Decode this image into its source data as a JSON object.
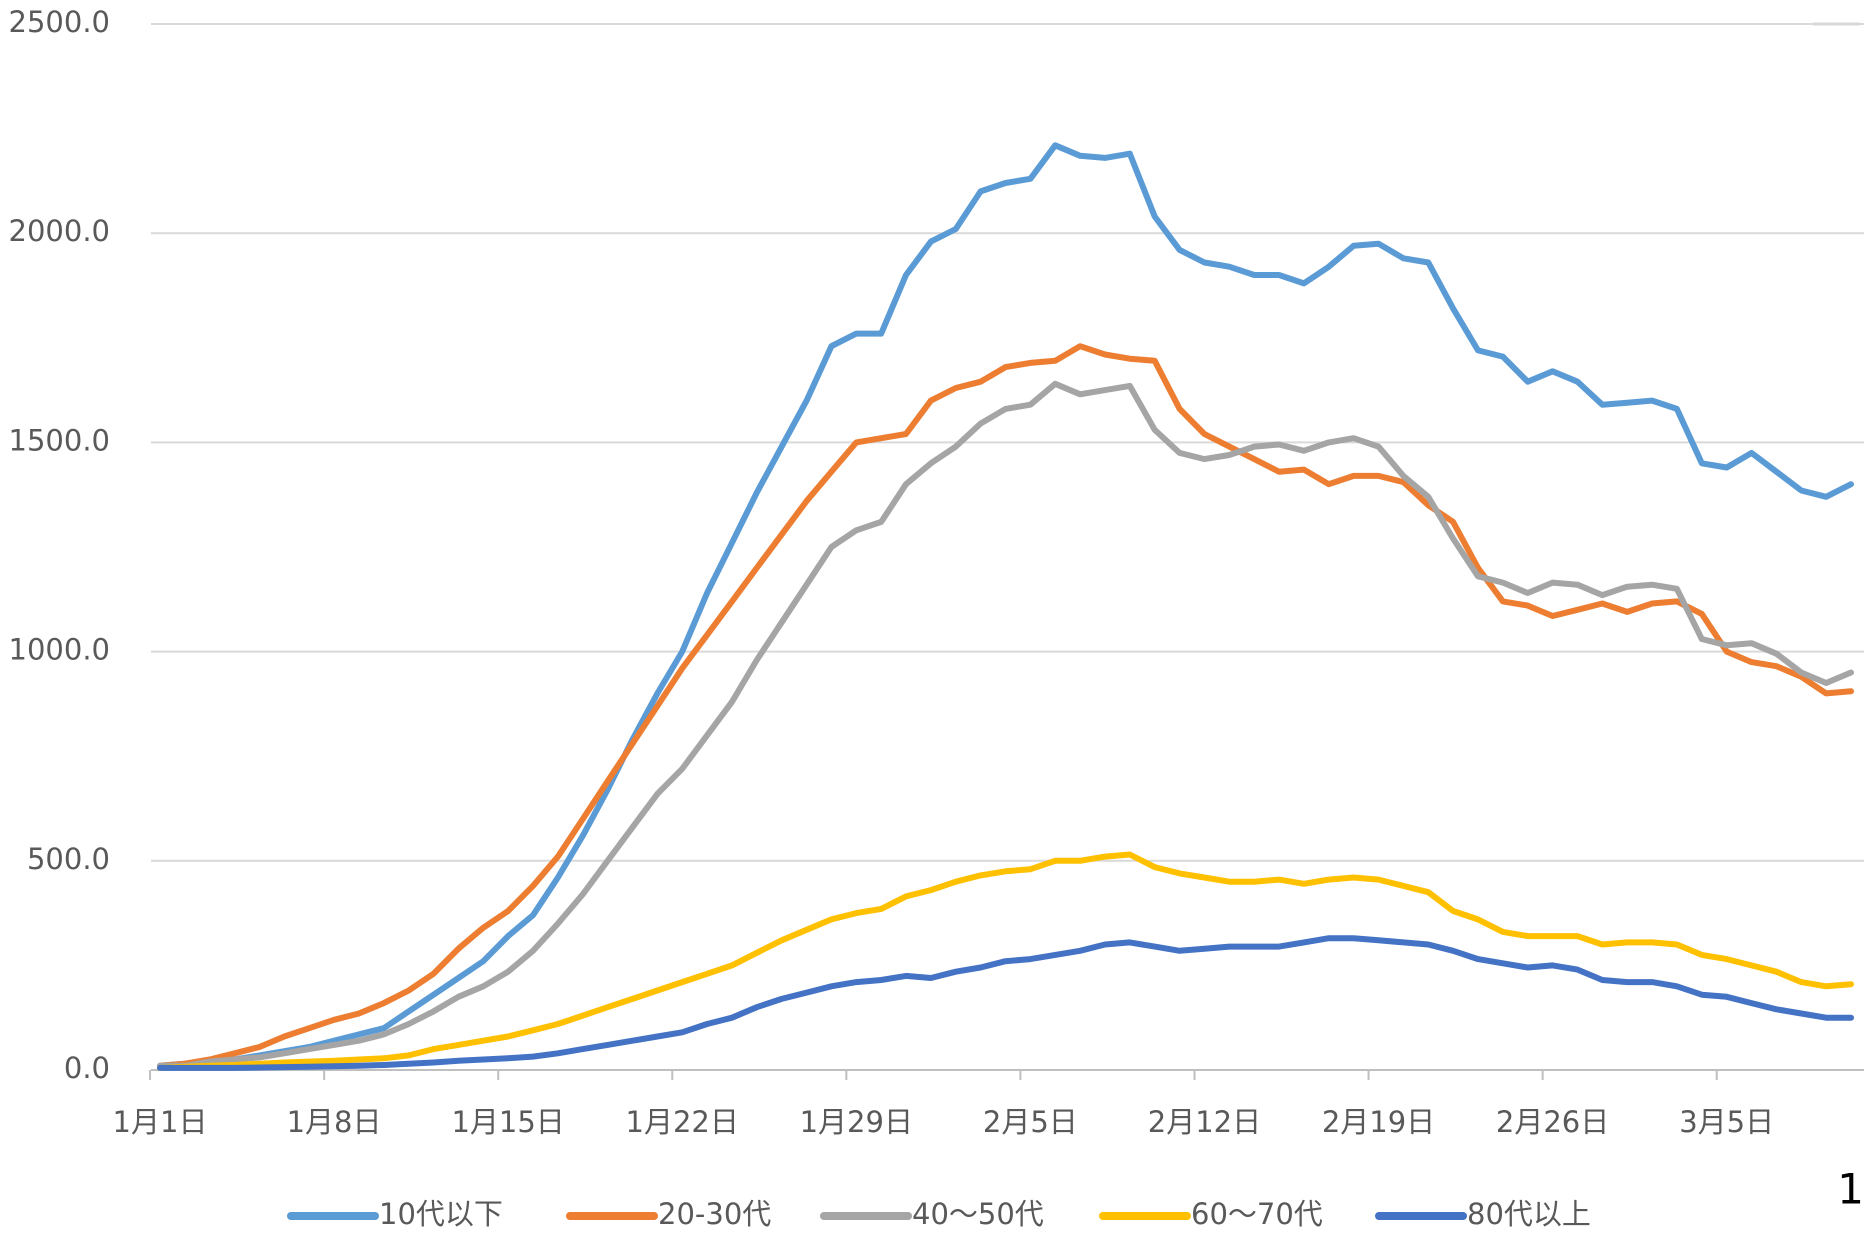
{
  "chart_data": {
    "type": "line",
    "categories": [
      "1月1日",
      null,
      null,
      null,
      null,
      null,
      null,
      "1月8日",
      null,
      null,
      null,
      null,
      null,
      null,
      "1月15日",
      null,
      null,
      null,
      null,
      null,
      null,
      "1月22日",
      null,
      null,
      null,
      null,
      null,
      null,
      "1月29日",
      null,
      null,
      null,
      null,
      null,
      null,
      "2月5日",
      null,
      null,
      null,
      null,
      null,
      null,
      "2月12日",
      null,
      null,
      null,
      null,
      null,
      null,
      "2月19日",
      null,
      null,
      null,
      null,
      null,
      null,
      "2月26日",
      null,
      null,
      null,
      null,
      null,
      null,
      "3月5日",
      null,
      null,
      null,
      null,
      null
    ],
    "series": [
      {
        "name": "10代以下",
        "color": "#5b9bd5",
        "values": [
          10,
          15,
          20,
          25,
          35,
          45,
          55,
          70,
          85,
          100,
          140,
          180,
          220,
          260,
          320,
          370,
          460,
          560,
          670,
          790,
          900,
          1000,
          1140,
          1260,
          1380,
          1490,
          1600,
          1730,
          1760,
          1760,
          1900,
          1980,
          2010,
          2100,
          2120,
          2130,
          2210,
          2185,
          2180,
          2190,
          2040,
          1960,
          1930,
          1920,
          1900,
          1900,
          1880,
          1920,
          1970,
          1975,
          1940,
          1930,
          1820,
          1720,
          1705,
          1645,
          1670,
          1645,
          1590,
          1595,
          1600,
          1580,
          1450,
          1440,
          1475,
          1430,
          1385,
          1370,
          1400
        ]
      },
      {
        "name": "20-30代",
        "color": "#ed7d31",
        "values": [
          10,
          15,
          25,
          40,
          55,
          80,
          100,
          120,
          135,
          160,
          190,
          230,
          290,
          340,
          380,
          440,
          510,
          600,
          690,
          780,
          870,
          960,
          1040,
          1120,
          1200,
          1280,
          1360,
          1430,
          1500,
          1510,
          1520,
          1600,
          1630,
          1645,
          1680,
          1690,
          1695,
          1730,
          1710,
          1700,
          1695,
          1580,
          1520,
          1490,
          1460,
          1430,
          1435,
          1400,
          1420,
          1420,
          1405,
          1350,
          1310,
          1200,
          1120,
          1110,
          1085,
          1100,
          1115,
          1095,
          1115,
          1120,
          1090,
          1000,
          975,
          965,
          940,
          900,
          905
        ]
      },
      {
        "name": "40～50代",
        "color": "#a5a5a5",
        "values": [
          10,
          10,
          20,
          25,
          30,
          40,
          50,
          60,
          70,
          85,
          110,
          140,
          175,
          200,
          235,
          285,
          350,
          420,
          500,
          580,
          660,
          720,
          800,
          880,
          980,
          1070,
          1160,
          1250,
          1290,
          1310,
          1400,
          1450,
          1490,
          1545,
          1580,
          1590,
          1640,
          1615,
          1625,
          1635,
          1530,
          1475,
          1460,
          1470,
          1490,
          1495,
          1480,
          1500,
          1510,
          1490,
          1420,
          1370,
          1270,
          1180,
          1165,
          1140,
          1165,
          1160,
          1135,
          1155,
          1160,
          1150,
          1030,
          1015,
          1020,
          995,
          950,
          925,
          950
        ]
      },
      {
        "name": "60～70代",
        "color": "#ffc000",
        "values": [
          5,
          8,
          10,
          12,
          15,
          18,
          20,
          22,
          25,
          28,
          35,
          50,
          60,
          70,
          80,
          95,
          110,
          130,
          150,
          170,
          190,
          210,
          230,
          250,
          280,
          310,
          335,
          360,
          375,
          385,
          415,
          430,
          450,
          465,
          475,
          480,
          500,
          500,
          510,
          515,
          485,
          470,
          460,
          450,
          450,
          455,
          445,
          455,
          460,
          455,
          440,
          425,
          380,
          360,
          330,
          320,
          320,
          320,
          300,
          305,
          305,
          300,
          275,
          265,
          250,
          235,
          210,
          200,
          205
        ]
      },
      {
        "name": "80代以上",
        "color": "#4472c4",
        "values": [
          5,
          5,
          5,
          5,
          6,
          7,
          8,
          9,
          10,
          12,
          15,
          18,
          22,
          25,
          28,
          32,
          40,
          50,
          60,
          70,
          80,
          90,
          110,
          125,
          150,
          170,
          185,
          200,
          210,
          215,
          225,
          220,
          235,
          245,
          260,
          265,
          275,
          285,
          300,
          305,
          295,
          285,
          290,
          295,
          295,
          295,
          305,
          315,
          315,
          310,
          305,
          300,
          285,
          265,
          255,
          245,
          250,
          240,
          215,
          210,
          210,
          200,
          180,
          175,
          160,
          145,
          135,
          125,
          125
        ]
      }
    ],
    "ylim": [
      0,
      2500
    ],
    "yticks": [
      {
        "value": 0,
        "label": "0.0"
      },
      {
        "value": 500,
        "label": "500.0"
      },
      {
        "value": 1000,
        "label": "1000.0"
      },
      {
        "value": 1500,
        "label": "1500.0"
      },
      {
        "value": 2000,
        "label": "2000.0"
      },
      {
        "value": 2500,
        "label": "2500.0"
      }
    ],
    "grid": true,
    "legend": "bottom",
    "page_number": "1"
  }
}
